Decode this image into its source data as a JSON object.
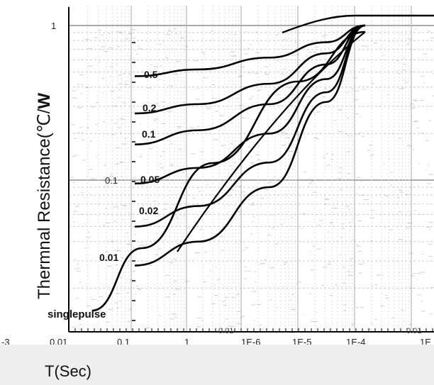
{
  "chart_data": {
    "type": "line",
    "xlabel": "T(Sec)",
    "ylabel_prefix": "Therm",
    "ylabel_suffix": "nal Resistance(℃/",
    "ylabel_unit": "W",
    "x_tick_labels": [
      "-3",
      "0.01",
      "0.1",
      "1",
      "1E-6",
      "1E-5",
      "1E-4",
      "1E"
    ],
    "y_tick_labels": [
      "1",
      "0.1"
    ],
    "extra_labels": [
      "0.01",
      "0.01"
    ],
    "series": [
      {
        "name": "0.5",
        "values": [
          0.47,
          0.52,
          0.62,
          0.78,
          1.0
        ]
      },
      {
        "name": "0.2",
        "values": [
          0.27,
          0.31,
          0.42,
          0.66,
          1.0
        ]
      },
      {
        "name": "0.1",
        "values": [
          0.17,
          0.21,
          0.31,
          0.56,
          1.0
        ]
      },
      {
        "name": "0.05",
        "values": [
          0.095,
          0.12,
          0.2,
          0.45,
          1.0
        ]
      },
      {
        "name": "0.02",
        "values": [
          0.05,
          0.068,
          0.13,
          0.37,
          1.0
        ]
      },
      {
        "name": "0.01",
        "values": [
          0.028,
          0.04,
          0.09,
          0.32,
          1.0
        ]
      },
      {
        "name": "singlepulse",
        "values": [
          0.012,
          0.024,
          0.07,
          0.28,
          1.0
        ]
      }
    ],
    "ylim": [
      0.01,
      1.1
    ],
    "grid": true
  }
}
